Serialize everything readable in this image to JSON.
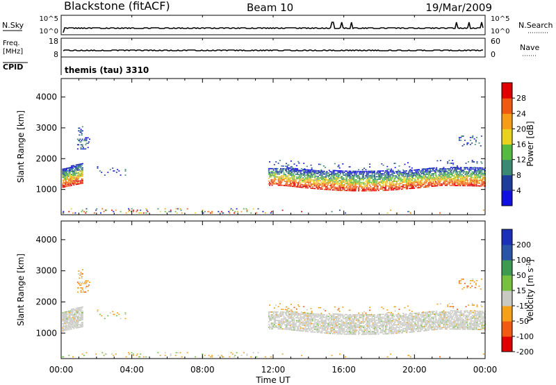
{
  "header": {
    "station": "Blackstone (fitACF)",
    "beam": "Beam 10",
    "date": "19/Mar/2009"
  },
  "summary": {
    "nsky_label": "N.Sky",
    "nsky_ticks": [
      "10^5",
      "10^0"
    ],
    "nsearch_label": "N.Search",
    "nsearch_ticks": [
      "10^5",
      "10^0"
    ],
    "freq_label": "Freq.",
    "freq_unit": "[MHz]",
    "freq_ticks": [
      "18",
      "8"
    ],
    "nave_label": "Nave",
    "nave_ticks": [
      "60",
      "0"
    ],
    "cpid_label": "CPID",
    "cpid_text": "themis (tau) 3310"
  },
  "colors": {
    "power": [
      "#1010e0",
      "#1e3d9a",
      "#3a8a73",
      "#55bb40",
      "#e8d21e",
      "#f59c18",
      "#ee5a12",
      "#e00000"
    ],
    "velocity": [
      "#e00000",
      "#f05a12",
      "#f4a018",
      "#c9c9c4",
      "#78c040",
      "#3e9a50",
      "#2a54a6",
      "#1b2fb8"
    ]
  },
  "chart_data": [
    {
      "type": "heatmap",
      "variable": "power",
      "xlabel": "Time UT",
      "ylabel": "Slant Range [km]",
      "xlim": [
        0,
        24
      ],
      "ylim": [
        180,
        4600
      ],
      "x_ticks": [
        "00:00",
        "04:00",
        "08:00",
        "12:00",
        "16:00",
        "20:00",
        "00:00"
      ],
      "y_ticks": [
        1000,
        2000,
        3000,
        4000
      ],
      "colorbar_label": "Power [dB]",
      "colorbar_ticks": [
        4,
        8,
        12,
        16,
        20,
        24,
        28
      ],
      "regions": [
        {
          "t": [
            0.0,
            1.2
          ],
          "r": [
            1050,
            1900
          ],
          "level": "high",
          "note": "dense echoes 00:00-01:10"
        },
        {
          "t": [
            0.9,
            1.6
          ],
          "r": [
            2250,
            3050
          ],
          "level": "low"
        },
        {
          "t": [
            1.8,
            3.6
          ],
          "r": [
            1400,
            1800
          ],
          "level": "low"
        },
        {
          "t": [
            11.7,
            24.0
          ],
          "r": [
            1000,
            1800
          ],
          "level": "mixed",
          "note": "persistent band, strongest near 1200 km"
        },
        {
          "t": [
            22.5,
            23.8
          ],
          "r": [
            2400,
            2750
          ],
          "level": "low"
        },
        {
          "t": [
            0.0,
            12.0
          ],
          "r": [
            200,
            400
          ],
          "level": "low",
          "note": "sparse near-range ground scatter"
        }
      ]
    },
    {
      "type": "heatmap",
      "variable": "velocity",
      "xlabel": "Time UT",
      "ylabel": "Slant Range [km]",
      "xlim": [
        0,
        24
      ],
      "ylim": [
        180,
        4600
      ],
      "x_ticks": [
        "00:00",
        "04:00",
        "08:00",
        "12:00",
        "16:00",
        "20:00",
        "00:00"
      ],
      "y_ticks": [
        1000,
        2000,
        3000,
        4000
      ],
      "colorbar_label": "Velocity [m s^-1]",
      "colorbar_ticks": [
        200,
        100,
        50,
        15,
        -15,
        -50,
        -100,
        -200
      ],
      "regions": [
        {
          "t": [
            0.0,
            1.2
          ],
          "r": [
            1050,
            1900
          ],
          "velocity": "-15 to 15"
        },
        {
          "t": [
            0.9,
            1.6
          ],
          "r": [
            2250,
            3050
          ],
          "velocity": "-50 to -100"
        },
        {
          "t": [
            11.7,
            24.0
          ],
          "r": [
            1000,
            1800
          ],
          "velocity": "-15 to 15"
        },
        {
          "t": [
            0.0,
            12.0
          ],
          "r": [
            200,
            400
          ],
          "velocity": "-15 to -50"
        }
      ]
    }
  ]
}
